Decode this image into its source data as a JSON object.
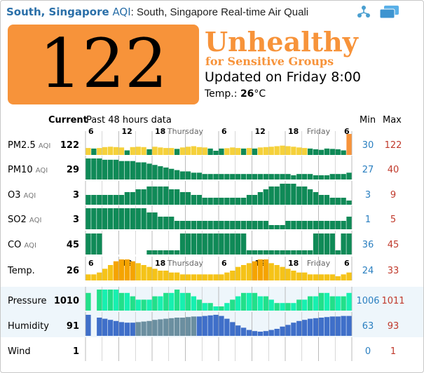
{
  "header": {
    "city": "South, Singapore",
    "aqi_label": "AQI",
    "subtitle": ": South, Singapore Real-time Air Quali",
    "share_icon": "share-icon",
    "windows_icon": "windows-icon"
  },
  "summary": {
    "aqi": "122",
    "level_line1": "Unhealthy",
    "level_line2": "for Sensitive Groups",
    "updated": "Updated on Friday 8:00",
    "temp_label": "Temp.: ",
    "temp_value": "26",
    "temp_unit": "°C",
    "aqi_color": "#f7933a"
  },
  "table": {
    "current_label": "Current",
    "past_label": "Past 48 hours data",
    "min_label": "Min",
    "max_label": "Max",
    "time_ticks": [
      "6",
      "12",
      "18",
      "Thursday",
      "6",
      "12",
      "18",
      "Friday",
      "6"
    ]
  },
  "chart_data": {
    "type": "bar",
    "hours": 48,
    "series": [
      {
        "key": "pm25",
        "name": "PM2.5",
        "unit": "AQI",
        "current": "122",
        "min": "30",
        "max": "122",
        "color": "#f5d13b",
        "values": [
          45,
          42,
          45,
          50,
          52,
          50,
          48,
          32,
          50,
          52,
          50,
          38,
          52,
          48,
          45,
          45,
          40,
          48,
          52,
          55,
          50,
          48,
          42,
          30,
          42,
          44,
          48,
          45,
          42,
          45,
          42,
          48,
          50,
          52,
          55,
          58,
          55,
          52,
          48,
          45,
          42,
          38,
          35,
          42,
          40,
          38,
          32,
          122
        ]
      },
      {
        "key": "pm10",
        "name": "PM10",
        "unit": "AQI",
        "current": "29",
        "min": "27",
        "max": "40",
        "color": "#0f8a57",
        "values": [
          40,
          40,
          40,
          39,
          39,
          39,
          38,
          38,
          38,
          37,
          37,
          36,
          35,
          34,
          33,
          32,
          31,
          30,
          30,
          29,
          29,
          28,
          28,
          28,
          28,
          28,
          28,
          28,
          28,
          28,
          28,
          28,
          28,
          28,
          28,
          28,
          28,
          27,
          28,
          28,
          28,
          27,
          27,
          27,
          28,
          28,
          28,
          29
        ]
      },
      {
        "key": "o3",
        "name": "O3",
        "unit": "AQI",
        "current": "3",
        "min": "3",
        "max": "9",
        "color": "#0f8a57",
        "values": [
          5,
          5,
          5,
          5,
          5,
          5,
          5,
          6,
          6,
          7,
          7,
          8,
          8,
          8,
          8,
          7,
          7,
          6,
          6,
          5,
          5,
          4,
          4,
          4,
          4,
          4,
          4,
          4,
          4,
          5,
          5,
          6,
          7,
          8,
          8,
          9,
          9,
          9,
          8,
          8,
          7,
          6,
          5,
          5,
          4,
          4,
          4,
          3
        ]
      },
      {
        "key": "so2",
        "name": "SO2",
        "unit": "AQI",
        "current": "3",
        "min": "1",
        "max": "5",
        "color": "#0f8a57",
        "values": [
          5,
          5,
          5,
          5,
          5,
          5,
          5,
          5,
          5,
          5,
          5,
          4,
          4,
          3,
          3,
          3,
          2,
          2,
          2,
          2,
          2,
          2,
          2,
          2,
          2,
          2,
          2,
          2,
          2,
          2,
          2,
          2,
          2,
          1,
          1,
          1,
          2,
          2,
          2,
          2,
          2,
          2,
          2,
          2,
          2,
          2,
          2,
          3
        ]
      },
      {
        "key": "co",
        "name": "CO",
        "unit": "AQI",
        "current": "45",
        "min": "36",
        "max": "45",
        "color": "#0f8a57",
        "values": [
          45,
          45,
          45,
          null,
          null,
          null,
          null,
          null,
          null,
          null,
          null,
          36,
          36,
          36,
          36,
          36,
          36,
          45,
          45,
          45,
          45,
          45,
          45,
          45,
          45,
          45,
          45,
          45,
          45,
          36,
          36,
          36,
          36,
          36,
          36,
          36,
          36,
          36,
          36,
          36,
          36,
          45,
          45,
          45,
          45,
          36,
          45,
          45
        ]
      },
      {
        "key": "temp",
        "name": "Temp.",
        "unit": "",
        "current": "26",
        "min": "24",
        "max": "33",
        "color": "#f5c318",
        "peak_color": "#f5a400",
        "values": [
          25,
          25,
          26,
          28,
          30,
          32,
          33,
          33,
          32,
          31,
          30,
          29,
          28,
          27,
          27,
          26,
          26,
          25,
          25,
          25,
          25,
          25,
          25,
          25,
          25,
          26,
          27,
          29,
          30,
          31,
          32,
          33,
          33,
          31,
          30,
          29,
          28,
          27,
          26,
          26,
          25,
          25,
          25,
          25,
          25,
          24,
          25,
          26
        ]
      },
      {
        "key": "pressure",
        "name": "Pressure",
        "unit": "",
        "current": "1010",
        "min": "1006",
        "max": "1011",
        "color": "#22e08a",
        "alt_color": "#17f0b0",
        "values": [
          1010,
          null,
          1011,
          1011,
          1011,
          1011,
          1010,
          1010,
          1009,
          1008,
          1008,
          1008,
          1009,
          1009,
          1010,
          1010,
          1011,
          1010,
          1010,
          1009,
          1008,
          1007,
          1007,
          1006,
          1006,
          1007,
          1008,
          1009,
          1010,
          1010,
          1010,
          1009,
          1009,
          1008,
          1007,
          1007,
          1007,
          1007,
          1008,
          1008,
          1009,
          1009,
          1010,
          1010,
          1009,
          1009,
          1009,
          1010
        ]
      },
      {
        "key": "humidity",
        "name": "Humidity",
        "unit": "",
        "current": "91",
        "min": "63",
        "max": "93",
        "color": "#3f6fc9",
        "alt_color": "#6b8fa0",
        "values": [
          93,
          null,
          88,
          86,
          84,
          82,
          80,
          79,
          79,
          80,
          81,
          82,
          84,
          85,
          86,
          87,
          88,
          88,
          89,
          90,
          90,
          91,
          92,
          93,
          91,
          86,
          80,
          74,
          70,
          66,
          64,
          63,
          64,
          66,
          68,
          72,
          75,
          79,
          82,
          84,
          86,
          87,
          88,
          89,
          90,
          90,
          91,
          91
        ]
      },
      {
        "key": "wind",
        "name": "Wind",
        "unit": "",
        "current": "1",
        "min": "0",
        "max": "1",
        "color": "#999999",
        "values": []
      }
    ]
  }
}
